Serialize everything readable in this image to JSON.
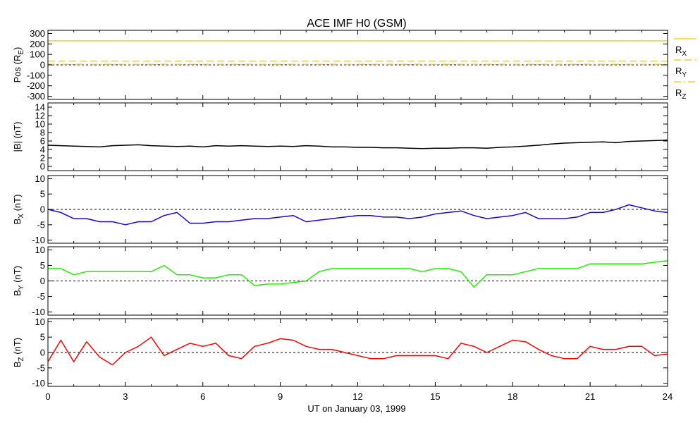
{
  "chart_data": {
    "type": "line",
    "title": "ACE IMF H0 (GSM)",
    "xlabel": "UT on January 03, 1999",
    "xlim": [
      0,
      24
    ],
    "x_ticks": [
      "0",
      "3",
      "6",
      "9",
      "12",
      "15",
      "18",
      "21",
      "24"
    ],
    "grid": false,
    "x": [
      0,
      0.5,
      1,
      1.5,
      2,
      2.5,
      3,
      3.5,
      4,
      4.5,
      5,
      5.5,
      6,
      6.5,
      7,
      7.5,
      8,
      8.5,
      9,
      9.5,
      10,
      10.5,
      11,
      11.5,
      12,
      12.5,
      13,
      13.5,
      14,
      14.5,
      15,
      15.5,
      16,
      16.5,
      17,
      17.5,
      18,
      18.5,
      19,
      19.5,
      20,
      20.5,
      21,
      21.5,
      22,
      22.5,
      23,
      23.5,
      24
    ],
    "panels": [
      {
        "ylabel": "Pos (RE)",
        "ylabel_main": "Pos (R",
        "ylabel_sub": "E",
        "ylabel_end": ")",
        "ylim": [
          -330,
          330
        ],
        "y_ticks": [
          "300",
          "200",
          "100",
          "0",
          "-100",
          "-200",
          "-300"
        ],
        "zero_line": true,
        "series": [
          {
            "name": "RX",
            "main": "R",
            "sub": "X",
            "style": "solid",
            "color": "#ffc000",
            "constant": 230
          },
          {
            "name": "RY",
            "main": "R",
            "sub": "Y",
            "style": "dashed",
            "color": "#ffc000",
            "constant": 35
          },
          {
            "name": "RZ",
            "main": "R",
            "sub": "Z",
            "style": "dashdot",
            "color": "#ffc000",
            "constant": 5
          }
        ]
      },
      {
        "ylabel": "|B| (nT)",
        "ylabel_main": "|B| (nT)",
        "ylabel_sub": "",
        "ylabel_end": "",
        "ylim": [
          -1,
          15
        ],
        "y_ticks": [
          "14",
          "12",
          "10",
          "8",
          "6",
          "4",
          "2",
          "0"
        ],
        "zero_line": false,
        "series": [
          {
            "name": "|B|",
            "color": "#000000",
            "style": "solid",
            "values": [
              5.0,
              4.9,
              4.8,
              4.7,
              4.6,
              4.9,
              5.0,
              5.1,
              4.9,
              4.8,
              4.7,
              4.8,
              4.6,
              4.9,
              4.8,
              4.9,
              4.8,
              4.7,
              4.8,
              4.7,
              4.9,
              4.8,
              4.6,
              4.6,
              4.5,
              4.5,
              4.4,
              4.4,
              4.3,
              4.2,
              4.3,
              4.3,
              4.4,
              4.4,
              4.3,
              4.5,
              4.6,
              4.8,
              5.0,
              5.3,
              5.5,
              5.6,
              5.7,
              5.8,
              5.6,
              5.9,
              6.0,
              6.1,
              6.2
            ]
          }
        ]
      },
      {
        "ylabel": "BX (nT)",
        "ylabel_main": "B",
        "ylabel_sub": "X",
        "ylabel_end": " (nT)",
        "ylim": [
          -11,
          11
        ],
        "y_ticks": [
          "10",
          "5",
          "0",
          "-5",
          "-10"
        ],
        "zero_line": true,
        "series": [
          {
            "name": "BX",
            "color": "#2000e0",
            "style": "solid",
            "values": [
              0,
              -1,
              -3,
              -3,
              -4,
              -4,
              -5,
              -4,
              -4,
              -2,
              -1,
              -4.5,
              -4.5,
              -4,
              -4,
              -3.5,
              -3,
              -3,
              -2.5,
              -2,
              -4,
              -3.5,
              -3,
              -2.5,
              -2,
              -2,
              -2.5,
              -2.5,
              -3,
              -2.5,
              -1.5,
              -1,
              -0.5,
              -2,
              -3,
              -2.5,
              -2,
              -1,
              -3,
              -3,
              -3,
              -2.5,
              -1,
              -1,
              0,
              1.5,
              0.5,
              -0.5,
              -1
            ]
          }
        ]
      },
      {
        "ylabel": "BY (nT)",
        "ylabel_main": "B",
        "ylabel_sub": "Y",
        "ylabel_end": " (nT)",
        "ylim": [
          -11,
          11
        ],
        "y_ticks": [
          "10",
          "5",
          "0",
          "-5",
          "-10"
        ],
        "zero_line": true,
        "series": [
          {
            "name": "BY",
            "color": "#20f000",
            "style": "solid",
            "values": [
              4,
              4,
              2,
              3,
              3,
              3,
              3,
              3,
              3,
              5,
              2,
              2,
              1,
              1,
              2,
              2,
              -1.5,
              -1,
              -1,
              -0.5,
              0,
              3,
              4,
              4,
              4,
              4,
              4,
              4,
              4,
              3,
              4,
              4,
              3,
              -2,
              2,
              2,
              2,
              3,
              4,
              4,
              4,
              4,
              5.5,
              5.5,
              5.5,
              5.5,
              5.5,
              6,
              6.5
            ]
          }
        ]
      },
      {
        "ylabel": "BZ (nT)",
        "ylabel_main": "B",
        "ylabel_sub": "Z",
        "ylabel_end": " (nT)",
        "ylim": [
          -11,
          11
        ],
        "y_ticks": [
          "10",
          "5",
          "0",
          "-5",
          "-10"
        ],
        "zero_line": true,
        "series": [
          {
            "name": "BZ",
            "color": "#ff0000",
            "style": "solid",
            "values": [
              -3,
              4,
              -3,
              3.5,
              -1.5,
              -4,
              0,
              2,
              5,
              -1,
              1,
              3,
              2,
              3,
              -1,
              -2,
              2,
              3,
              4.5,
              4,
              2,
              1,
              1,
              0,
              -1,
              -2,
              -2,
              -1,
              -1,
              -1,
              -1,
              -2,
              3,
              2,
              0,
              2,
              4,
              3.5,
              1,
              -1,
              -2,
              -2,
              2,
              1,
              1,
              2,
              2,
              -1,
              -0.5
            ]
          }
        ]
      }
    ]
  }
}
